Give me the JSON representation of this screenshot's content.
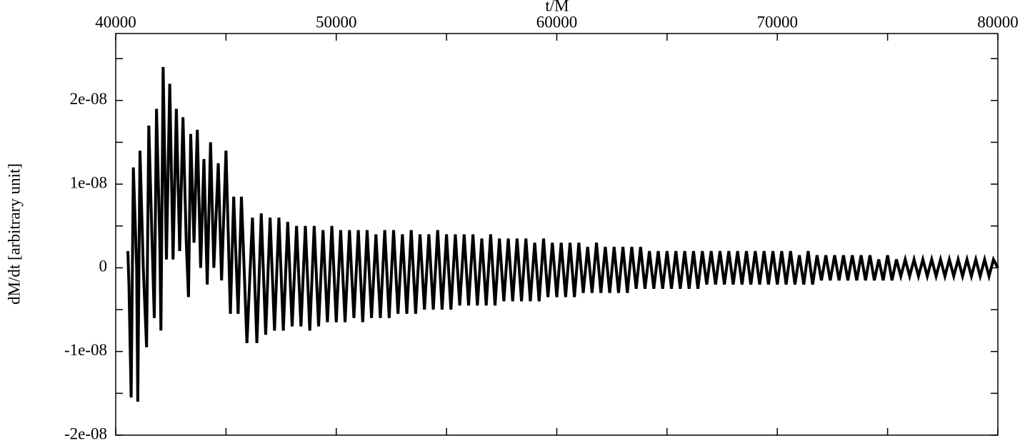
{
  "chart_data": {
    "type": "line",
    "x_label": "t/M",
    "y_label": "dM/dt [arbitrary unit]",
    "color": "#000000",
    "xlim": [
      40000,
      80000
    ],
    "xticks": [
      40000,
      50000,
      60000,
      70000,
      80000
    ],
    "xminorticks": [
      45000,
      55000,
      65000,
      75000
    ],
    "ylim": [
      -2e-08,
      2.8e-08
    ],
    "yticks": [
      {
        "value": -2e-08,
        "label": "-2e-08"
      },
      {
        "value": -1e-08,
        "label": "-1e-08"
      },
      0,
      {
        "value": 1e-08,
        "label": "1e-08"
      },
      {
        "value": 2e-08,
        "label": "2e-08"
      }
    ],
    "yminorticks": [
      -1.5e-08,
      -5e-09,
      5e-09,
      1.5e-08,
      2.5e-08
    ],
    "x": [
      40550,
      40600,
      40700,
      40800,
      40950,
      41000,
      41100,
      41250,
      41400,
      41500,
      41650,
      41750,
      41850,
      42000,
      42050,
      42150,
      42300,
      42450,
      42600,
      42750,
      42900,
      43050,
      43200,
      43300,
      43400,
      43550,
      43700,
      43850,
      44000,
      44150,
      44300,
      44450,
      44650,
      44800,
      45000,
      45200,
      45350,
      45550,
      45700,
      45950,
      46200,
      46400,
      46600,
      46800,
      47000,
      47200,
      47400,
      47600,
      47800,
      48000,
      48200,
      48400,
      48600,
      48800,
      49000,
      49200,
      49400,
      49600,
      49800,
      50000,
      50200,
      50400,
      50600,
      50800,
      51000,
      51200,
      51400,
      51600,
      51800,
      52000,
      52200,
      52400,
      52600,
      52800,
      53000,
      53200,
      53400,
      53600,
      53800,
      54000,
      54200,
      54400,
      54600,
      54800,
      55000,
      55200,
      55400,
      55600,
      55800,
      56000,
      56200,
      56400,
      56600,
      56800,
      57000,
      57200,
      57400,
      57600,
      57800,
      58000,
      58200,
      58400,
      58600,
      58800,
      59000,
      59200,
      59400,
      59600,
      59800,
      60000,
      60200,
      60400,
      60600,
      60800,
      61000,
      61200,
      61400,
      61600,
      61800,
      62000,
      62200,
      62400,
      62600,
      62800,
      63000,
      63200,
      63400,
      63600,
      63800,
      64000,
      64200,
      64400,
      64600,
      64800,
      65000,
      65200,
      65400,
      65600,
      65800,
      66000,
      66200,
      66400,
      66600,
      66800,
      67000,
      67200,
      67400,
      67600,
      67800,
      68000,
      68200,
      68400,
      68600,
      68800,
      69000,
      69200,
      69400,
      69600,
      69800,
      70000,
      70200,
      70400,
      70600,
      70800,
      71000,
      71200,
      71400,
      71600,
      71800,
      72000,
      72200,
      72400,
      72600,
      72800,
      73000,
      73200,
      73400,
      73600,
      73800,
      74000,
      74200,
      74400,
      74600,
      74800,
      75000,
      75200,
      75400,
      75600,
      75800,
      76000,
      76200,
      76400,
      76600,
      76800,
      77000,
      77200,
      77400,
      77600,
      77800,
      78000,
      78200,
      78400,
      78600,
      78800,
      79000,
      79200,
      79400,
      79600,
      79800,
      80000
    ],
    "values": [
      2e-09,
      -2e-09,
      -1.55e-08,
      1.2e-08,
      0,
      -1.6e-08,
      1.4e-08,
      0,
      -9.5e-09,
      1.7e-08,
      3e-09,
      -6e-09,
      1.9e-08,
      3e-09,
      -7.5e-09,
      2.4e-08,
      1e-09,
      2.2e-08,
      1e-09,
      1.9e-08,
      2e-09,
      1.8e-08,
      3e-09,
      -3.5e-09,
      1.6e-08,
      3e-09,
      1.65e-08,
      0,
      1.3e-08,
      -2e-09,
      1.5e-08,
      0,
      1.25e-08,
      -1.5e-09,
      1.4e-08,
      -5.5e-09,
      8.5e-09,
      -5.5e-09,
      8.5e-09,
      -9e-09,
      6e-09,
      -9e-09,
      6.5e-09,
      -8e-09,
      6e-09,
      -7.5e-09,
      6e-09,
      -7.5e-09,
      5.5e-09,
      -7e-09,
      5e-09,
      -7e-09,
      5e-09,
      -7.5e-09,
      5e-09,
      -7e-09,
      4.5e-09,
      -6.5e-09,
      5e-09,
      -6.5e-09,
      4.5e-09,
      -6.5e-09,
      4.5e-09,
      -6e-09,
      4.5e-09,
      -6.5e-09,
      4.5e-09,
      -6e-09,
      4e-09,
      -6e-09,
      4.5e-09,
      -6e-09,
      4.5e-09,
      -5.5e-09,
      4e-09,
      -5.5e-09,
      4.5e-09,
      -5.5e-09,
      4e-09,
      -5e-09,
      4e-09,
      -5e-09,
      4.5e-09,
      -5e-09,
      4e-09,
      -5e-09,
      4e-09,
      -4.5e-09,
      4e-09,
      -4.5e-09,
      4e-09,
      -4.5e-09,
      3.5e-09,
      -4.5e-09,
      4e-09,
      -4.5e-09,
      3.5e-09,
      -4e-09,
      3.5e-09,
      -4e-09,
      3.5e-09,
      -4e-09,
      3.5e-09,
      -4e-09,
      3e-09,
      -4e-09,
      3.5e-09,
      -3.5e-09,
      3e-09,
      -3.5e-09,
      3e-09,
      -3.5e-09,
      3e-09,
      -3.5e-09,
      3e-09,
      -3e-09,
      2.5e-09,
      -3e-09,
      3e-09,
      -3e-09,
      2.5e-09,
      -3e-09,
      2.5e-09,
      -3e-09,
      2.5e-09,
      -3e-09,
      2.5e-09,
      -2.5e-09,
      2.5e-09,
      -2.5e-09,
      2e-09,
      -2.5e-09,
      2e-09,
      -2.5e-09,
      2e-09,
      -2.5e-09,
      2e-09,
      -2.5e-09,
      2e-09,
      -2.5e-09,
      2e-09,
      -2.5e-09,
      2e-09,
      -2e-09,
      2e-09,
      -2e-09,
      2e-09,
      -2e-09,
      2e-09,
      -2e-09,
      2e-09,
      -2e-09,
      2e-09,
      -2e-09,
      2e-09,
      -2e-09,
      2e-09,
      -2e-09,
      2e-09,
      -2e-09,
      2e-09,
      -2e-09,
      2e-09,
      -2e-09,
      1.5e-09,
      -2e-09,
      2e-09,
      -2e-09,
      1.5e-09,
      -1.5e-09,
      1.5e-09,
      -1.5e-09,
      1.5e-09,
      -1.5e-09,
      1.5e-09,
      -1.5e-09,
      1.5e-09,
      -1.5e-09,
      1.5e-09,
      -1.5e-09,
      1.5e-09,
      -1.5e-09,
      1e-09,
      -1.5e-09,
      1.5e-09,
      -1.5e-09,
      1e-09,
      -1e-09,
      1e-09,
      -1e-09,
      1e-09,
      -1e-09,
      1e-09,
      -1e-09,
      1e-09,
      -1e-09,
      1e-09,
      -1e-09,
      1e-09,
      -1e-09,
      1e-09,
      -1e-09,
      1e-09,
      -1e-09,
      1e-09,
      -1e-09,
      1e-09,
      -1e-09,
      1e-09,
      0
    ]
  }
}
